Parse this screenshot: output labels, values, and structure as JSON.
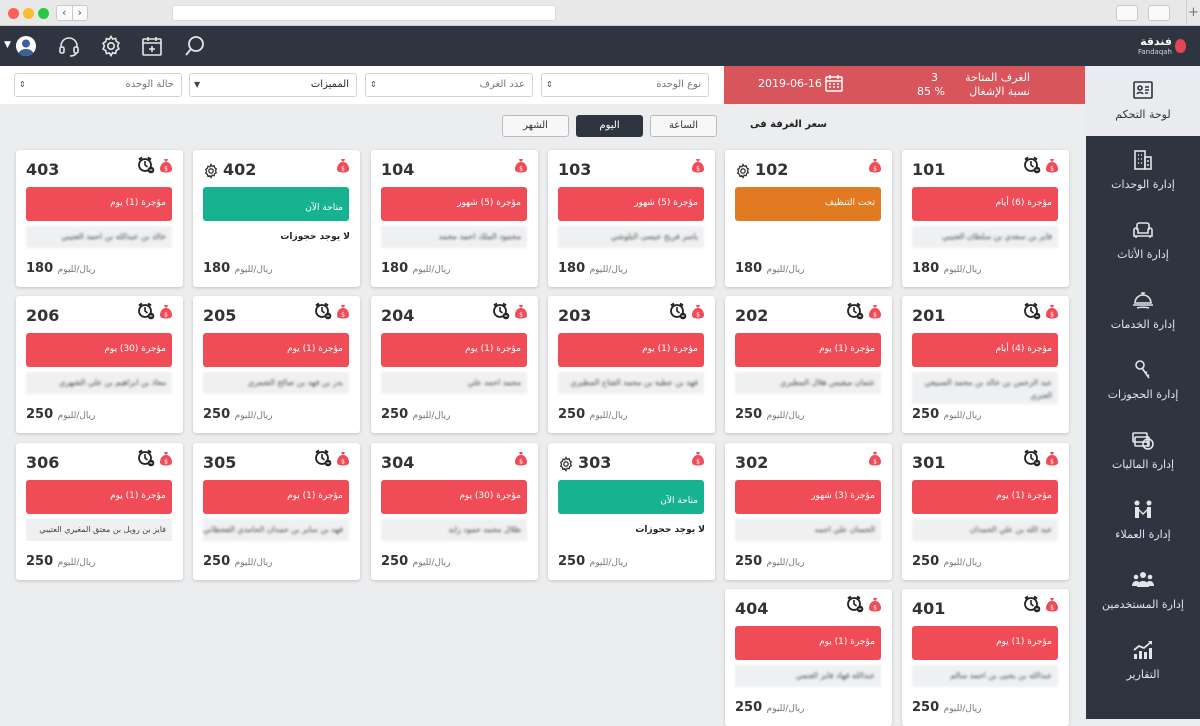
{
  "header": {
    "logo_ar": "فندقة",
    "logo_en": "Fandaqah"
  },
  "filters": {
    "unit_type": "نوع الوحدة",
    "room_count": "عدد الغرف",
    "features": "المميزات",
    "unit_status": "حالة الوحدة"
  },
  "stats": {
    "available_label": "الغرف المتاحة",
    "available_value": "3",
    "occupancy_label": "نسبة الإشغال",
    "occupancy_value": "85 %",
    "date": "2019-06-16"
  },
  "pricing": {
    "label": "سعر الغرفة فى",
    "hour": "الساعة",
    "day": "اليوم",
    "month": "الشهر",
    "active": "day"
  },
  "sidebar": {
    "items": [
      {
        "label": "لوحة التحكم",
        "icon": "dashboard-icon"
      },
      {
        "label": "إدارة الوحدات",
        "icon": "building-icon"
      },
      {
        "label": "إدارة الأثاث",
        "icon": "sofa-icon"
      },
      {
        "label": "إدارة الخدمات",
        "icon": "service-tray-icon"
      },
      {
        "label": "إدارة الحجوزات",
        "icon": "key-icon"
      },
      {
        "label": "إدارة الماليات",
        "icon": "money-icon"
      },
      {
        "label": "إدارة العملاء",
        "icon": "customers-icon"
      },
      {
        "label": "إدارة المستخدمين",
        "icon": "users-icon"
      },
      {
        "label": "التقارير",
        "icon": "chart-icon"
      }
    ]
  },
  "rooms": [
    {
      "number": "101",
      "status": "rented",
      "label": "مؤجرة (6) أيام",
      "guest": "فايز بن سعدي بن سلطان العتيبي",
      "price": "180",
      "unit": "ريال/لليوم",
      "clock": true,
      "gear": false
    },
    {
      "number": "102",
      "status": "clean",
      "label": "تحت التنظيف",
      "guest": "",
      "price": "180",
      "unit": "ريال/لليوم",
      "clock": false,
      "gear": true
    },
    {
      "number": "103",
      "status": "rented",
      "label": "مؤجرة (5) شهور",
      "guest": "ياسر فريح عيسى البلوشي",
      "price": "180",
      "unit": "ريال/لليوم",
      "clock": false,
      "gear": false
    },
    {
      "number": "104",
      "status": "rented",
      "label": "مؤجرة (5) شهور",
      "guest": "محمود الملك احمد محمد",
      "price": "180",
      "unit": "ريال/لليوم",
      "clock": false,
      "gear": false
    },
    {
      "number": "402",
      "status": "avail",
      "label": "متاحة الآن",
      "nobook": "لا يوجد حجوزات",
      "price": "180",
      "unit": "ريال/لليوم",
      "clock": false,
      "gear": true
    },
    {
      "number": "403",
      "status": "rented",
      "label": "مؤجرة (1) يوم",
      "guest": "خالد بن عبدالله بن احمد العتيبي",
      "price": "180",
      "unit": "ريال/لليوم",
      "clock": true,
      "gear": false
    },
    {
      "number": "201",
      "status": "rented",
      "label": "مؤجرة (4) أيام",
      "guest": "عبد الرحمن بن خالد بن محمد السبيعي العنزي",
      "price": "250",
      "unit": "ريال/لليوم",
      "clock": true,
      "gear": false,
      "tall": true
    },
    {
      "number": "202",
      "status": "rented",
      "label": "مؤجرة (1) يوم",
      "guest": "عثمان ميقيس هلال المطيري",
      "price": "250",
      "unit": "ريال/لليوم",
      "clock": true,
      "gear": false
    },
    {
      "number": "203",
      "status": "rented",
      "label": "مؤجرة (1) يوم",
      "guest": "فهد بن عطية بن محمد الفتاح المطيري",
      "price": "250",
      "unit": "ريال/لليوم",
      "clock": true,
      "gear": false
    },
    {
      "number": "204",
      "status": "rented",
      "label": "مؤجرة (1) يوم",
      "guest": "محمد احمد علي",
      "price": "250",
      "unit": "ريال/لليوم",
      "clock": true,
      "gear": false
    },
    {
      "number": "205",
      "status": "rented",
      "label": "مؤجرة (1) يوم",
      "guest": "بدر بن فهد بن صالح الشمري",
      "price": "250",
      "unit": "ريال/لليوم",
      "clock": true,
      "gear": false
    },
    {
      "number": "206",
      "status": "rented",
      "label": "مؤجرة (30) يوم",
      "guest": "معاذ بن ابراهيم بن علي الشهري",
      "price": "250",
      "unit": "ريال/لليوم",
      "clock": true,
      "gear": false
    },
    {
      "number": "301",
      "status": "rented",
      "label": "مؤجرة (1) يوم",
      "guest": "عبد الله بن علي الحمدان",
      "price": "250",
      "unit": "ريال/لليوم",
      "clock": true,
      "gear": false
    },
    {
      "number": "302",
      "status": "rented",
      "label": "مؤجرة (3) شهور",
      "guest": "الحسان علي احمد",
      "price": "250",
      "unit": "ريال/لليوم",
      "clock": false,
      "gear": false
    },
    {
      "number": "303",
      "status": "avail",
      "label": "متاحة الآن",
      "nobook": "لا يوجد حجوزات",
      "price": "250",
      "unit": "ريال/لليوم",
      "clock": false,
      "gear": true
    },
    {
      "number": "304",
      "status": "rented",
      "label": "مؤجرة (30) يوم",
      "guest": "طلال محمد حمود زايد",
      "price": "250",
      "unit": "ريال/لليوم",
      "clock": false,
      "gear": false
    },
    {
      "number": "305",
      "status": "rented",
      "label": "مؤجرة (1) يوم",
      "guest": "فهد بن ساير بن حمدان الحامدي القحطاني",
      "price": "250",
      "unit": "ريال/لليوم",
      "clock": true,
      "gear": false
    },
    {
      "number": "306",
      "status": "rented",
      "label": "مؤجرة (1) يوم",
      "guest": "فايز بن رويل بن معتق المغيري العتيبي",
      "price": "250",
      "unit": "ريال/لليوم",
      "clock": true,
      "gear": false,
      "clear": true
    },
    {
      "number": "401",
      "status": "rented",
      "label": "مؤجرة (1) يوم",
      "guest": "عبدالله بن يحيى بن احمد سالم",
      "price": "250",
      "unit": "ريال/لليوم",
      "clock": true,
      "gear": false
    },
    {
      "number": "404",
      "status": "rented",
      "label": "مؤجرة (1) يوم",
      "guest": "عبدالله فهاد فايز العنمي",
      "price": "250",
      "unit": "ريال/لليوم",
      "clock": true,
      "gear": false
    }
  ]
}
